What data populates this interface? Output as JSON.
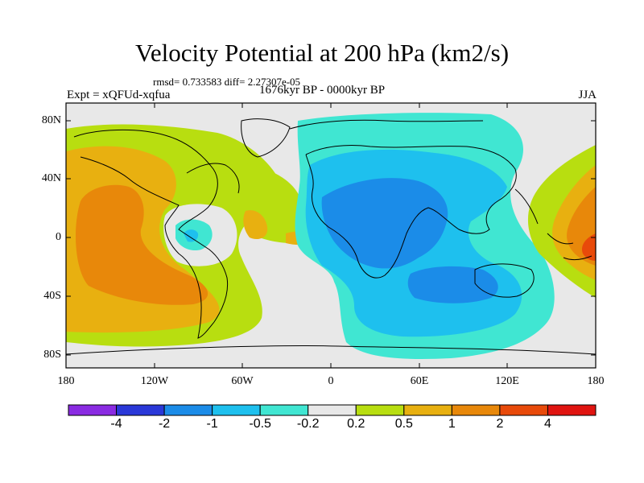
{
  "header": {
    "title": "Velocity Potential at 200 hPa (km2/s)",
    "stats": "rmsd= 0.733583 diff= 2.27307e-05",
    "experiment": "Expt = xQFUd-xqfua",
    "period": "1676kyr BP - 0000kyr BP",
    "season": "JJA"
  },
  "axes": {
    "lat_labels": [
      "80N",
      "40N",
      "0",
      "40S",
      "80S"
    ],
    "lon_labels": [
      "180",
      "120W",
      "60W",
      "0",
      "60E",
      "120E",
      "180"
    ]
  },
  "colorbar": {
    "colors": [
      "#8a2be2",
      "#2a38d8",
      "#1b8ce8",
      "#1ec0ee",
      "#40e6d2",
      "#e8e8e8",
      "#b8de10",
      "#e8b010",
      "#e8880a",
      "#e84a0a",
      "#e01410"
    ],
    "labels": [
      "-4",
      "-2",
      "-1",
      "-0.5",
      "-0.2",
      "0.2",
      "0.5",
      "1",
      "2",
      "4"
    ]
  },
  "map_colors": {
    "background": "#e8e8e8",
    "weak_positive": "#b8de10",
    "positive_05": "#e8b010",
    "positive_1": "#e8880a",
    "positive_2": "#e84a0a",
    "weak_negative": "#40e6d2",
    "negative_05": "#1ec0ee",
    "negative_1": "#1b8ce8"
  }
}
